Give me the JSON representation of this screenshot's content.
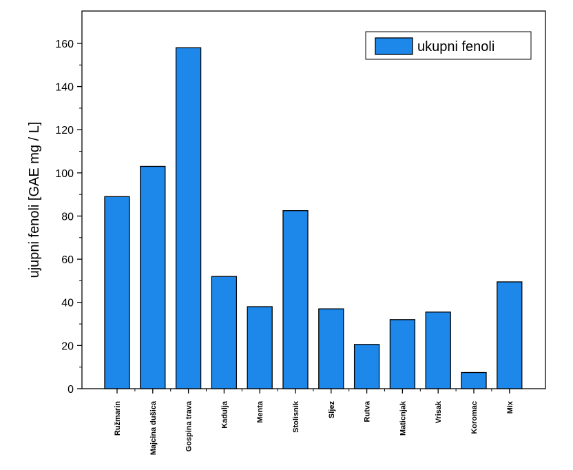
{
  "chart_data": {
    "type": "bar",
    "categories": [
      "Ružmarin",
      "Majcina dušica",
      "Gospina trava",
      "Kadulja",
      "Menta",
      "Stolisnik",
      "Sljez",
      "Rutva",
      "Maticnjak",
      "Vrisak",
      "Koromac",
      "Mix"
    ],
    "series": [
      {
        "name": "ukupni fenoli",
        "values": [
          89,
          103,
          158,
          52,
          38,
          82.5,
          37,
          20.5,
          32,
          35.5,
          7.5,
          49.5
        ],
        "color": "#1e88ea"
      }
    ],
    "ylabel": "ujupni fenoli [GAE mg / L]",
    "xlabel": "",
    "ylim": [
      0,
      175
    ],
    "yticks": [
      0,
      20,
      40,
      60,
      80,
      100,
      120,
      140,
      160
    ],
    "legend_position": "top-right",
    "grid": false
  }
}
